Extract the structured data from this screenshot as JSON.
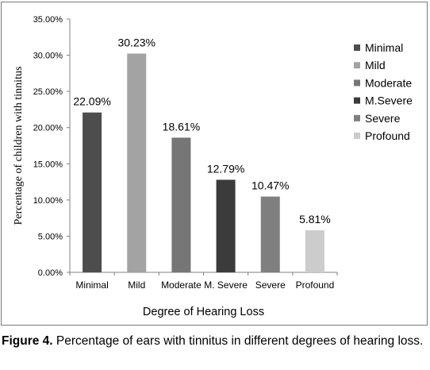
{
  "chart_data": {
    "type": "bar",
    "categories": [
      "Minimal",
      "Mild",
      "Moderate",
      "M. Severe",
      "Severe",
      "Profound"
    ],
    "values": [
      22.09,
      30.23,
      18.61,
      12.79,
      10.47,
      5.81
    ],
    "data_labels": [
      "22.09%",
      "30.23%",
      "18.61%",
      "12.79%",
      "10.47%",
      "5.81%"
    ],
    "bar_colors": [
      "#4d4d4d",
      "#a3a3a3",
      "#767676",
      "#3b3b3b",
      "#7f7f7f",
      "#cccccc"
    ],
    "xlabel": "Degree of Hearing Loss",
    "ylabel": "Percentage of children with tinnitus",
    "ylim": [
      0,
      35
    ],
    "yticks": [
      0,
      5,
      10,
      15,
      20,
      25,
      30,
      35
    ],
    "ytick_labels": [
      "0.00%",
      "5.00%",
      "10.00%",
      "15.00%",
      "20.00%",
      "25.00%",
      "30.00%",
      "35.00%"
    ],
    "grid": false,
    "legend": {
      "placement": "right",
      "entries": [
        "Minimal",
        "Mild",
        "Moderate",
        "M.Severe",
        "Severe",
        "Profound"
      ]
    }
  },
  "caption": {
    "label": "Figure 4.",
    "text": " Percentage of ears with tinnitus in different degrees of hearing loss."
  }
}
